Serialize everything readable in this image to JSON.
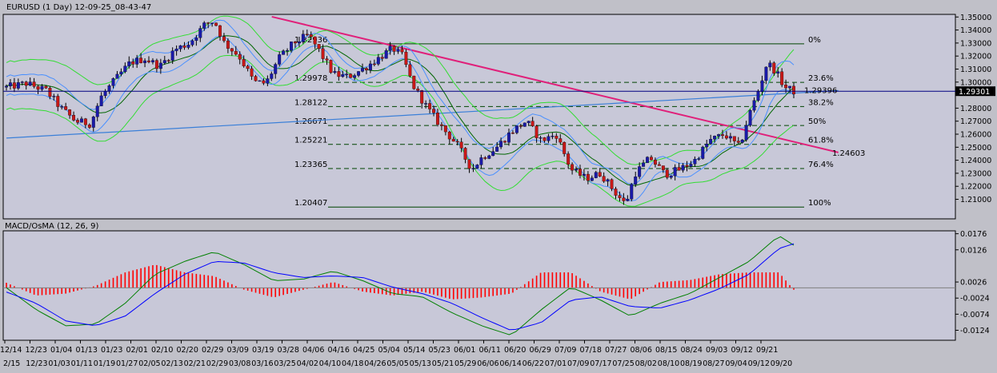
{
  "window": {
    "title": "EURUSD (1 Day) 12-09-25_08-43-47"
  },
  "colors": {
    "background": "#c0c0c8",
    "plot_background": "#c8c8d8",
    "frame": "#000000",
    "bull_body": "#1a1aa8",
    "bear_body": "#c81818",
    "wick": "#000000",
    "bollinger_outer": "#33dd33",
    "bollinger_mid": "#006600",
    "ema_blue": "#4a90ff",
    "trendline_pink": "#e0207a",
    "trendline_blue": "#3a7fd8",
    "fib_line": "#004400",
    "price_line": "#000080",
    "macd_green": "#008000",
    "macd_signal_blue": "#0000ff",
    "osma_red": "#ff0000"
  },
  "chart_data": [
    {
      "type": "candlestick",
      "title": "EURUSD (1 Day) 12-09-25_08-43-47",
      "ylim": [
        1.195,
        1.352
      ],
      "y_ticks": [
        "1.35000",
        "1.34000",
        "1.33000",
        "1.32000",
        "1.31000",
        "1.30000",
        "1.29301",
        "1.28000",
        "1.27000",
        "1.26000",
        "1.25000",
        "1.24000",
        "1.23000",
        "1.22000",
        "1.21000"
      ],
      "x_ticks_top": [
        "12/14",
        "12/23",
        "01/04",
        "01/13",
        "01/23",
        "02/01",
        "02/10",
        "02/20",
        "02/29",
        "03/09",
        "03/19",
        "03/28",
        "04/06",
        "04/16",
        "04/25",
        "05/04",
        "05/14",
        "05/23",
        "06/01",
        "06/11",
        "06/20",
        "06/29",
        "07/09",
        "07/18",
        "07/27",
        "08/06",
        "08/15",
        "08/24",
        "09/03",
        "09/12",
        "09/21"
      ],
      "x_ticks_bottom": [
        "2/15",
        "12/23",
        "01/03",
        "01/11",
        "01/19",
        "01/27",
        "02/05",
        "02/13",
        "02/21",
        "02/29",
        "03/08",
        "03/16",
        "03/25",
        "04/02",
        "04/10",
        "04/18",
        "04/26",
        "05/05",
        "05/13",
        "05/21",
        "05/29",
        "06/06",
        "06/14",
        "06/22",
        "07/01",
        "07/09",
        "07/17",
        "07/25",
        "08/02",
        "08/10",
        "08/19",
        "08/27",
        "09/04",
        "09/12",
        "09/20"
      ],
      "current_price": "1.29301",
      "current_price_value": 1.29301,
      "fib_levels": [
        {
          "price": 1.32936,
          "price_label": "",
          "pct": "0%"
        },
        {
          "price": 1.29978,
          "price_label": "1.29978",
          "pct": "23.6%"
        },
        {
          "price": 1.28122,
          "price_label": "1.28122",
          "pct": "38.2%"
        },
        {
          "price": 1.26671,
          "price_label": "1.26671",
          "pct": "50%"
        },
        {
          "price": 1.25221,
          "price_label": "1.25221",
          "pct": "61.8%"
        },
        {
          "price": 1.23365,
          "price_label": "1.23365",
          "pct": "76.4%"
        },
        {
          "price": 1.20407,
          "price_label": "1.20407",
          "pct": "100%"
        }
      ],
      "high_label": "1.32936",
      "annotations": [
        {
          "text": "1.29396",
          "price": 1.29396
        },
        {
          "text": "1.24603",
          "price": 1.24603
        }
      ],
      "trendlines": [
        {
          "name": "pink-downtrend",
          "points": [
            [
              0.268,
              1.3502
            ],
            [
              0.84,
              1.246
            ]
          ]
        },
        {
          "name": "blue-uptrend",
          "points": [
            [
              0.0,
              1.257
            ],
            [
              0.84,
              1.2935
            ]
          ]
        }
      ],
      "anchors": [
        [
          0.0,
          1.296
        ],
        [
          0.02,
          1.299
        ],
        [
          0.04,
          1.2935
        ],
        [
          0.055,
          1.28
        ],
        [
          0.07,
          1.27
        ],
        [
          0.085,
          1.268
        ],
        [
          0.095,
          1.288
        ],
        [
          0.11,
          1.302
        ],
        [
          0.125,
          1.315
        ],
        [
          0.14,
          1.318
        ],
        [
          0.155,
          1.312
        ],
        [
          0.17,
          1.325
        ],
        [
          0.185,
          1.33
        ],
        [
          0.2,
          1.344
        ],
        [
          0.21,
          1.347
        ],
        [
          0.22,
          1.33
        ],
        [
          0.235,
          1.32
        ],
        [
          0.25,
          1.3
        ],
        [
          0.262,
          1.299
        ],
        [
          0.275,
          1.318
        ],
        [
          0.29,
          1.33
        ],
        [
          0.305,
          1.336
        ],
        [
          0.315,
          1.325
        ],
        [
          0.33,
          1.306
        ],
        [
          0.345,
          1.304
        ],
        [
          0.36,
          1.31
        ],
        [
          0.375,
          1.318
        ],
        [
          0.39,
          1.326
        ],
        [
          0.4,
          1.32
        ],
        [
          0.41,
          1.298
        ],
        [
          0.425,
          1.28
        ],
        [
          0.44,
          1.265
        ],
        [
          0.455,
          1.252
        ],
        [
          0.47,
          1.233
        ],
        [
          0.48,
          1.242
        ],
        [
          0.495,
          1.25
        ],
        [
          0.51,
          1.262
        ],
        [
          0.525,
          1.27
        ],
        [
          0.54,
          1.255
        ],
        [
          0.555,
          1.26
        ],
        [
          0.57,
          1.233
        ],
        [
          0.585,
          1.226
        ],
        [
          0.6,
          1.23
        ],
        [
          0.615,
          1.215
        ],
        [
          0.625,
          1.206
        ],
        [
          0.635,
          1.23
        ],
        [
          0.65,
          1.242
        ],
        [
          0.665,
          1.229
        ],
        [
          0.68,
          1.233
        ],
        [
          0.695,
          1.24
        ],
        [
          0.71,
          1.255
        ],
        [
          0.725,
          1.26
        ],
        [
          0.74,
          1.25
        ],
        [
          0.75,
          1.275
        ],
        [
          0.76,
          1.295
        ],
        [
          0.768,
          1.315
        ],
        [
          0.776,
          1.309
        ],
        [
          0.786,
          1.296
        ],
        [
          0.795,
          1.293
        ]
      ],
      "bollinger_width": [
        [
          0.0,
          0.018
        ],
        [
          0.1,
          0.022
        ],
        [
          0.2,
          0.016
        ],
        [
          0.3,
          0.012
        ],
        [
          0.4,
          0.012
        ],
        [
          0.5,
          0.028
        ],
        [
          0.6,
          0.018
        ],
        [
          0.7,
          0.012
        ],
        [
          0.8,
          0.03
        ]
      ]
    },
    {
      "type": "line",
      "title": "MACD/OsMA (12, 26, 9)",
      "ylim": [
        -0.0155,
        0.0185
      ],
      "y_ticks": [
        "0.0176",
        "0.0126",
        "0.0026",
        "-0.0024",
        "-0.0074",
        "-0.0124"
      ],
      "series": [
        {
          "name": "MACD",
          "values": [
            [
              0.0,
              0.0008
            ],
            [
              0.03,
              -0.006
            ],
            [
              0.06,
              -0.011
            ],
            [
              0.09,
              -0.0105
            ],
            [
              0.12,
              -0.004
            ],
            [
              0.15,
              0.005
            ],
            [
              0.18,
              0.009
            ],
            [
              0.21,
              0.012
            ],
            [
              0.24,
              0.008
            ],
            [
              0.27,
              0.003
            ],
            [
              0.3,
              0.0035
            ],
            [
              0.33,
              0.006
            ],
            [
              0.36,
              0.003
            ],
            [
              0.39,
              -0.001
            ],
            [
              0.42,
              -0.002
            ],
            [
              0.45,
              -0.007
            ],
            [
              0.48,
              -0.011
            ],
            [
              0.51,
              -0.014
            ],
            [
              0.54,
              -0.006
            ],
            [
              0.57,
              0.001
            ],
            [
              0.6,
              -0.003
            ],
            [
              0.63,
              -0.008
            ],
            [
              0.66,
              -0.004
            ],
            [
              0.69,
              -0.001
            ],
            [
              0.72,
              0.004
            ],
            [
              0.75,
              0.009
            ],
            [
              0.78,
              0.017
            ],
            [
              0.795,
              0.014
            ]
          ]
        },
        {
          "name": "Signal",
          "values": [
            [
              0.0,
              -0.0005
            ],
            [
              0.03,
              -0.004
            ],
            [
              0.06,
              -0.0095
            ],
            [
              0.09,
              -0.011
            ],
            [
              0.12,
              -0.008
            ],
            [
              0.15,
              -0.001
            ],
            [
              0.18,
              0.005
            ],
            [
              0.21,
              0.009
            ],
            [
              0.24,
              0.0085
            ],
            [
              0.27,
              0.0055
            ],
            [
              0.3,
              0.004
            ],
            [
              0.33,
              0.0045
            ],
            [
              0.36,
              0.004
            ],
            [
              0.39,
              0.001
            ],
            [
              0.42,
              -0.001
            ],
            [
              0.45,
              -0.004
            ],
            [
              0.48,
              -0.0085
            ],
            [
              0.51,
              -0.0125
            ],
            [
              0.54,
              -0.01
            ],
            [
              0.57,
              -0.003
            ],
            [
              0.6,
              -0.002
            ],
            [
              0.63,
              -0.005
            ],
            [
              0.66,
              -0.0055
            ],
            [
              0.69,
              -0.003
            ],
            [
              0.72,
              0.0005
            ],
            [
              0.75,
              0.005
            ],
            [
              0.78,
              0.013
            ],
            [
              0.795,
              0.0145
            ]
          ]
        }
      ]
    }
  ]
}
